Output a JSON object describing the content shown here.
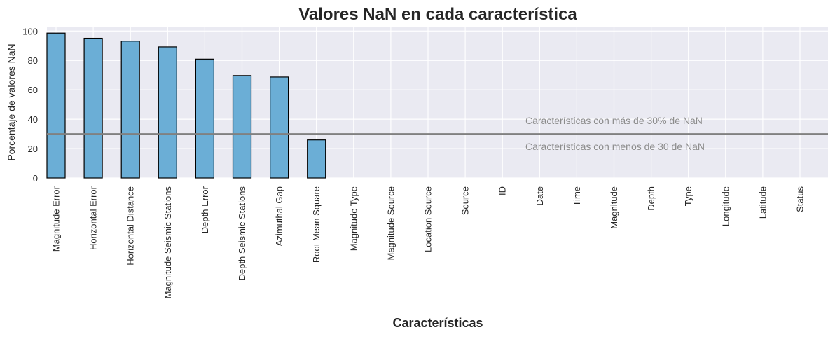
{
  "chart_data": {
    "type": "bar",
    "title": "Valores NaN en cada característica",
    "xlabel": "Características",
    "ylabel": "Porcentaje de valores NaN",
    "categories": [
      "Magnitude Error",
      "Horizontal Error",
      "Horizontal Distance",
      "Magnitude Seismic Stations",
      "Depth Error",
      "Depth Seismic Stations",
      "Azimuthal Gap",
      "Root Mean Square",
      "Magnitude Type",
      "Magnitude Source",
      "Location Source",
      "Source",
      "ID",
      "Date",
      "Time",
      "Magnitude",
      "Depth",
      "Type",
      "Longitude",
      "Latitude",
      "Status"
    ],
    "values": [
      98.6,
      95.1,
      93.1,
      89.2,
      80.9,
      69.7,
      68.7,
      25.9,
      0,
      0,
      0,
      0,
      0,
      0,
      0,
      0,
      0,
      0,
      0,
      0,
      0
    ],
    "ylim": [
      0,
      103
    ],
    "yticks": [
      0,
      20,
      40,
      60,
      80,
      100
    ],
    "grid": true,
    "bar_color": "#6baed6",
    "bar_edge_color": "#000000",
    "background_color": "#eaeaf2",
    "threshold": {
      "value": 30,
      "color": "#808080",
      "label_above": "Características con más de 30% de NaN",
      "label_below": "Características con menos de 30 de NaN"
    }
  }
}
